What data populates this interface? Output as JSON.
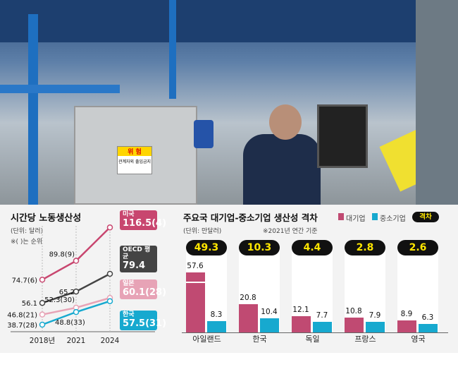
{
  "photo": {
    "sign_title": "위 험",
    "sign_text": "관계자외 출입금지"
  },
  "chart_data": [
    {
      "type": "line",
      "title": "시간당 노동생산성",
      "unit": "(단위: 달러)",
      "note": "※( )는 순위",
      "x": [
        "2018년",
        "2021",
        "2024"
      ],
      "series": [
        {
          "name": "미국",
          "values": [
            74.7,
            89.8,
            116.5
          ],
          "ranks": [
            "(6)",
            "(9)",
            "(4)"
          ],
          "color": "#c8466f"
        },
        {
          "name": "OECD 평균",
          "values": [
            56.1,
            65.2,
            79.4
          ],
          "ranks": [
            "",
            "",
            ""
          ],
          "color": "#444444"
        },
        {
          "name": "일본",
          "values": [
            46.8,
            52.3,
            60.1
          ],
          "ranks": [
            "(21)",
            "(30)",
            "(28)"
          ],
          "color": "#e7a3b6"
        },
        {
          "name": "한국",
          "values": [
            38.7,
            48.8,
            57.5
          ],
          "ranks": [
            "(28)",
            "(33)",
            "(31)"
          ],
          "color": "#17a9cf"
        }
      ]
    },
    {
      "type": "bar",
      "title": "주요국 대기업-중소기업 생산성 격차",
      "unit": "(단위: 만달러)",
      "note": "※2021년 연간 기준",
      "categories": [
        "아일랜드",
        "한국",
        "독일",
        "프랑스",
        "영국"
      ],
      "series": [
        {
          "name": "대기업",
          "values": [
            57.6,
            20.8,
            12.1,
            10.8,
            8.9
          ],
          "color": "#c04a72"
        },
        {
          "name": "중소기업",
          "values": [
            8.3,
            10.4,
            7.7,
            7.9,
            6.3
          ],
          "color": "#17a9cf"
        }
      ],
      "gap_label": "격차",
      "gaps": [
        49.3,
        10.3,
        4.4,
        2.8,
        2.6
      ]
    }
  ]
}
